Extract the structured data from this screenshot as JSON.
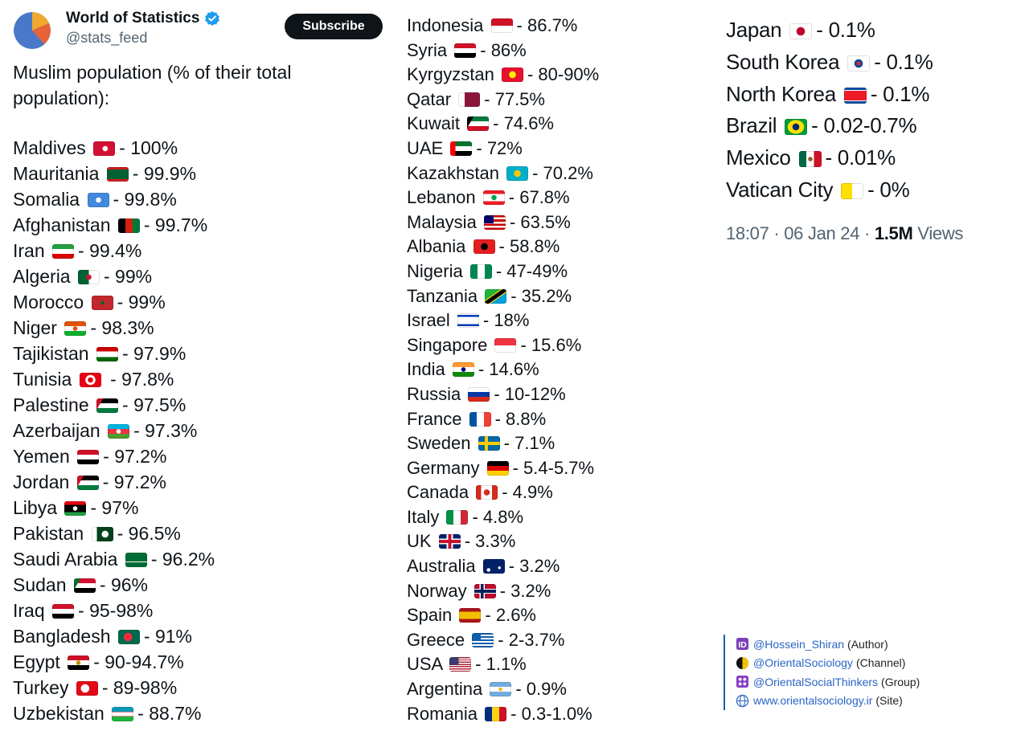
{
  "header": {
    "name": "World of Statistics",
    "handle": "@stats_feed",
    "subscribe_label": "Subscribe"
  },
  "intro": "Muslim population (% of their total population):",
  "column1": [
    {
      "country": "Maldives",
      "flag": "maldives",
      "value": "- 100%"
    },
    {
      "country": "Mauritania",
      "flag": "mauritania",
      "value": "- 99.9%"
    },
    {
      "country": "Somalia",
      "flag": "somalia",
      "value": "- 99.8%"
    },
    {
      "country": "Afghanistan",
      "flag": "afghanistan",
      "value": "- 99.7%"
    },
    {
      "country": "Iran",
      "flag": "iran",
      "value": "- 99.4%"
    },
    {
      "country": "Algeria",
      "flag": "algeria",
      "value": "- 99%"
    },
    {
      "country": "Morocco",
      "flag": "morocco",
      "value": "- 99%"
    },
    {
      "country": "Niger",
      "flag": "niger",
      "value": "- 98.3%"
    },
    {
      "country": "Tajikistan",
      "flag": "tajikistan",
      "value": "- 97.9%"
    },
    {
      "country": "Tunisia",
      "flag": "tunisia",
      "value": " - 97.8%"
    },
    {
      "country": "Palestine",
      "flag": "palestine",
      "value": "- 97.5%"
    },
    {
      "country": "Azerbaijan",
      "flag": "azerbaijan",
      "value": "- 97.3%"
    },
    {
      "country": "Yemen",
      "flag": "yemen",
      "value": "- 97.2%"
    },
    {
      "country": "Jordan",
      "flag": "jordan",
      "value": "- 97.2%"
    },
    {
      "country": "Libya",
      "flag": "libya",
      "value": "- 97%"
    },
    {
      "country": "Pakistan",
      "flag": "pakistan",
      "value": "- 96.5%"
    },
    {
      "country": "Saudi Arabia",
      "flag": "saudi-arabia",
      "value": "- 96.2%"
    },
    {
      "country": "Sudan",
      "flag": "sudan",
      "value": "- 96%"
    },
    {
      "country": "Iraq",
      "flag": "iraq",
      "value": "- 95-98%"
    },
    {
      "country": "Bangladesh",
      "flag": "bangladesh",
      "value": "- 91%"
    },
    {
      "country": "Egypt",
      "flag": "egypt",
      "value": "- 90-94.7%"
    },
    {
      "country": "Turkey",
      "flag": "turkey",
      "value": "- 89-98%"
    },
    {
      "country": "Uzbekistan",
      "flag": "uzbekistan",
      "value": "- 88.7%"
    }
  ],
  "column2": [
    {
      "country": "Indonesia",
      "flag": "indonesia",
      "value": "- 86.7%"
    },
    {
      "country": "Syria",
      "flag": "syria",
      "value": "- 86%"
    },
    {
      "country": "Kyrgyzstan",
      "flag": "kyrgyzstan",
      "value": "- 80-90%"
    },
    {
      "country": "Qatar",
      "flag": "qatar",
      "value": "- 77.5%"
    },
    {
      "country": "Kuwait",
      "flag": "kuwait",
      "value": "- 74.6%"
    },
    {
      "country": "UAE",
      "flag": "uae",
      "value": "- 72%"
    },
    {
      "country": "Kazakhstan",
      "flag": "kazakhstan",
      "value": "- 70.2%"
    },
    {
      "country": "Lebanon",
      "flag": "lebanon",
      "value": "- 67.8%"
    },
    {
      "country": "Malaysia",
      "flag": "malaysia",
      "value": "- 63.5%"
    },
    {
      "country": "Albania",
      "flag": "albania",
      "value": "- 58.8%"
    },
    {
      "country": "Nigeria",
      "flag": "nigeria",
      "value": "- 47-49%"
    },
    {
      "country": "Tanzania",
      "flag": "tanzania",
      "value": "- 35.2%"
    },
    {
      "country": "Israel",
      "flag": "israel",
      "value": "- 18%"
    },
    {
      "country": "Singapore",
      "flag": "singapore",
      "value": "- 15.6%"
    },
    {
      "country": "India",
      "flag": "india",
      "value": "- 14.6%"
    },
    {
      "country": "Russia",
      "flag": "russia",
      "value": "- 10-12%"
    },
    {
      "country": "France",
      "flag": "france",
      "value": "- 8.8%"
    },
    {
      "country": "Sweden",
      "flag": "sweden",
      "value": "- 7.1%"
    },
    {
      "country": "Germany",
      "flag": "germany",
      "value": "- 5.4-5.7%"
    },
    {
      "country": "Canada",
      "flag": "canada",
      "value": "- 4.9%"
    },
    {
      "country": "Italy",
      "flag": "italy",
      "value": "- 4.8%"
    },
    {
      "country": "UK",
      "flag": "uk",
      "value": "- 3.3%"
    },
    {
      "country": "Australia",
      "flag": "australia",
      "value": "- 3.2%"
    },
    {
      "country": "Norway",
      "flag": "norway",
      "value": "- 3.2%"
    },
    {
      "country": "Spain",
      "flag": "spain",
      "value": "- 2.6%"
    },
    {
      "country": "Greece",
      "flag": "greece",
      "value": "- 2-3.7%"
    },
    {
      "country": "USA",
      "flag": "usa",
      "value": "- 1.1%"
    },
    {
      "country": "Argentina",
      "flag": "argentina",
      "value": "- 0.9%"
    },
    {
      "country": "Romania",
      "flag": "romania",
      "value": "- 0.3-1.0%"
    }
  ],
  "column3": [
    {
      "country": "Japan",
      "flag": "japan",
      "value": "- 0.1%"
    },
    {
      "country": "South Korea",
      "flag": "south-korea",
      "value": "- 0.1%"
    },
    {
      "country": "North Korea",
      "flag": "north-korea",
      "value": "- 0.1%"
    },
    {
      "country": "Brazil",
      "flag": "brazil",
      "value": "- 0.02-0.7%"
    },
    {
      "country": "Mexico",
      "flag": "mexico",
      "value": "- 0.01%"
    },
    {
      "country": "Vatican City",
      "flag": "vatican-city",
      "value": "- 0%"
    }
  ],
  "meta": {
    "time": "18:07",
    "date": "06 Jan 24",
    "views_count": "1.5M",
    "views_label": "Views"
  },
  "credits": [
    {
      "icon": "id-icon",
      "link": "@Hossein_Shiran",
      "role": "(Author)"
    },
    {
      "icon": "half-moon-icon",
      "link": "@OrientalSociology",
      "role": "(Channel)"
    },
    {
      "icon": "group-icon",
      "link": "@OrientalSocialThinkers",
      "role": "(Group)"
    },
    {
      "icon": "globe-icon",
      "link": "www.orientalsociology.ir",
      "role": "(Site)"
    }
  ],
  "colors": {
    "text": "#0f1419",
    "muted": "#536471",
    "button": "#0f1419",
    "verified": "#1d9bf0",
    "link": "#2a64c5"
  }
}
